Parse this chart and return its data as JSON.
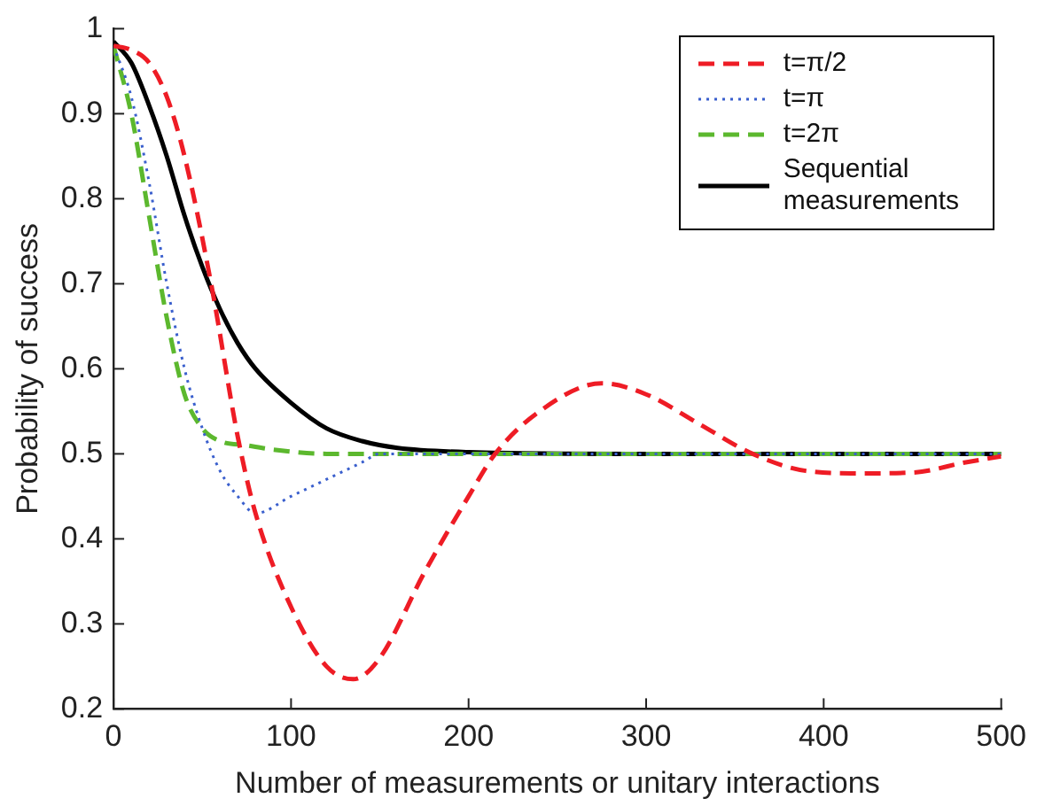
{
  "chart_data": {
    "type": "line",
    "xlabel": "Number of measurements or unitary interactions",
    "ylabel": "Probability of success",
    "xlim": [
      0,
      500
    ],
    "xticks": [
      0,
      100,
      200,
      300,
      400,
      500
    ],
    "ylim": [
      0.2,
      1
    ],
    "yticks": [
      0.2,
      0.3,
      0.4,
      0.5,
      0.6,
      0.7,
      0.8,
      0.9,
      1
    ],
    "grid": false,
    "legend": "top right",
    "marker": "none",
    "series": [
      {
        "name": "t=π/2",
        "color": "#ee1c25",
        "line_style": "dashed",
        "x": [
          0,
          10,
          20,
          30,
          40,
          55,
          70,
          80,
          100,
          120,
          135,
          150,
          175,
          200,
          215,
          240,
          275,
          300,
          330,
          360,
          390,
          420,
          450,
          480,
          500
        ],
        "values": [
          0.98,
          0.975,
          0.96,
          0.92,
          0.85,
          0.7,
          0.52,
          0.43,
          0.32,
          0.25,
          0.235,
          0.26,
          0.36,
          0.45,
          0.5,
          0.55,
          0.583,
          0.57,
          0.535,
          0.5,
          0.48,
          0.477,
          0.478,
          0.49,
          0.497
        ]
      },
      {
        "name": "t=π",
        "color": "#3a5fcd",
        "line_style": "dotted",
        "x": [
          0,
          10,
          20,
          30,
          40,
          50,
          60,
          70,
          80,
          100,
          120,
          140,
          150,
          200,
          300,
          400,
          500
        ],
        "values": [
          0.98,
          0.92,
          0.82,
          0.7,
          0.6,
          0.53,
          0.48,
          0.45,
          0.43,
          0.45,
          0.47,
          0.49,
          0.5,
          0.5,
          0.5,
          0.5,
          0.5
        ]
      },
      {
        "name": "t=2π",
        "color": "#5cb82e",
        "line_style": "dashed",
        "x": [
          0,
          10,
          20,
          30,
          40,
          50,
          60,
          75,
          90,
          120,
          200,
          300,
          400,
          500
        ],
        "values": [
          0.98,
          0.9,
          0.78,
          0.66,
          0.57,
          0.53,
          0.515,
          0.51,
          0.505,
          0.5,
          0.5,
          0.5,
          0.5,
          0.5
        ]
      },
      {
        "name": "Sequential measurements",
        "color": "#000000",
        "line_style": "solid",
        "x": [
          0,
          10,
          20,
          30,
          40,
          50,
          60,
          70,
          80,
          100,
          120,
          140,
          160,
          200,
          300,
          400,
          500
        ],
        "values": [
          0.985,
          0.96,
          0.91,
          0.85,
          0.78,
          0.72,
          0.67,
          0.63,
          0.6,
          0.56,
          0.53,
          0.515,
          0.507,
          0.502,
          0.5,
          0.5,
          0.5
        ]
      }
    ]
  }
}
